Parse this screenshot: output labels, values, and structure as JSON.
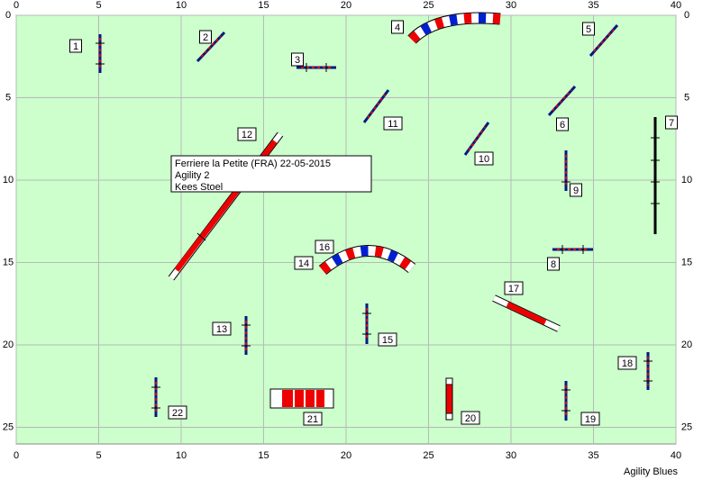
{
  "info": {
    "lines": [
      "Ferriere la Petite (FRA) 22-05-2015",
      "Agility 2",
      "Kees Stoel"
    ]
  },
  "axes": {
    "x_ticks": [
      0,
      5,
      10,
      15,
      20,
      25,
      30,
      35,
      40
    ],
    "y_ticks": [
      0,
      5,
      10,
      15,
      20,
      25
    ]
  },
  "obstacle_numbers": [
    "1",
    "2",
    "3",
    "4",
    "5",
    "6",
    "7",
    "8",
    "9",
    "10",
    "11",
    "12",
    "13",
    "14",
    "15",
    "16",
    "17",
    "18",
    "19",
    "20",
    "21",
    "22"
  ],
  "footer": "Agility Blues"
}
